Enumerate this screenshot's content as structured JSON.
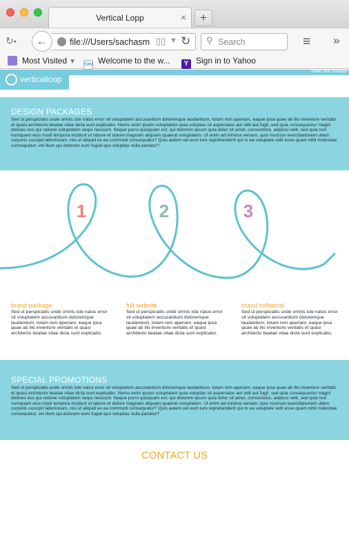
{
  "browser": {
    "tab_title": "Vertical Lopp",
    "tab_close": "×",
    "new_tab": "+",
    "url": "file:///Users/sachasm",
    "search_placeholder": "Search",
    "bookmarks": [
      {
        "label": "Most Visited",
        "icon": "folder-icon"
      },
      {
        "label": "Welcome to the w...",
        "icon": "sxm-icon"
      },
      {
        "label": "Sign in to Yahoo",
        "icon": "yahoo-icon"
      }
    ],
    "sxm_badge": "SXM",
    "yahoo_badge": "Y"
  },
  "site": {
    "logo_text": "verticalloop",
    "nav_links": [
      "main",
      "site",
      "contact"
    ],
    "accent": "#77ccdd",
    "band_color": "#8ad5e0",
    "orange": "#f0a22c"
  },
  "design_packages": {
    "title": "DESIGN PACKAGES",
    "text": "Sed ut perspiciatis unde omnis iste natus error sit voluptatem accusantium doloremque laudantium, totam rem aperiam, eaque ipsa quae ab illo inventore veritatis et quasi architecto beatae vitae dicta sunt explicabo. Nemo enim ipsam voluptatem quia voluptas sit aspernatur aut odit aut fugit, sed quia consequuntur magni dolores eos qui ratione voluptatem sequi nesciunt. Neque porro quisquam est, qui dolorem ipsum quia dolor sit amet, consectetur, adipisci velit, sed quia non numquam eius modi tempora incidunt ut labore et dolore magnam aliquam quaerat voluptatem. Ut enim ad minima veniam, quis nostrum exercitationem ullam corporis suscipit laboriosam, nisi ut aliquid ex ea commodi consequatur? Quis autem vel eum iure reprehenderit qui in ea voluptate velit esse quam nihil molestiae consequatur, vel illum qui dolorem eum fugiat quo voluptas nulla pariatur?"
  },
  "loops": [
    {
      "number": "1",
      "color": "#f08078"
    },
    {
      "number": "2",
      "color": "#8fb6b4"
    },
    {
      "number": "3",
      "color": "#c98ac4"
    }
  ],
  "columns": [
    {
      "title": "brand package",
      "text": "Sed ut perspiciatis unde omnis iste natus error sit voluptatem accusantium doloremque laudantium, totam rem aperiam, eaque ipsa quae ab illo inventore veritatis et quasi architecto beatae vitae dicta sunt explicabo."
    },
    {
      "title": "full website",
      "text": "Sed ut perspiciatis unde omnis iste natus error sit voluptatem accusantium doloremque laudantium, totam rem aperiam, eaque ipsa quae ab illo inventore veritatis et quasi architecto beatae vitae dicta sunt explicabo."
    },
    {
      "title": "brand collateral",
      "text": "Sed ut perspiciatis unde omnis iste natus error sit voluptatem accusantium doloremque laudantium, totam rem aperiam, eaque ipsa quae ab illo inventore veritatis et quasi architecto beatae vitae dicta sunt explicabo."
    }
  ],
  "special_promotions": {
    "title": "SPECIAL PROMOTIONS",
    "text": "Sed ut perspiciatis unde omnis iste natus error sit voluptatem accusantium doloremque laudantium, totam rem aperiam, eaque ipsa quae ab illo inventore veritatis et quasi architecto beatae vitae dicta sunt explicabo. Nemo enim ipsam voluptatem quia voluptas sit aspernatur aut odit aut fugit, sed quia consequuntur magni dolores eos qui ratione voluptatem sequi nesciunt. Neque porro quisquam est, qui dolorem ipsum quia dolor sit amet, consectetur, adipisci velit, sed quia non numquam eius modi tempora incidunt ut labore et dolore magnam aliquam quaerat voluptatem. Ut enim ad minima veniam, quis nostrum exercitationem ullam corporis suscipit laboriosam, nisi ut aliquid ex ea commodi consequatur? Quis autem vel eum iure reprehenderit qui in ea voluptate velit esse quam nihil molestiae consequatur, vel illum qui dolorem eum fugiat quo voluptas nulla pariatur?"
  },
  "contact": {
    "label": "CONTACT US"
  }
}
